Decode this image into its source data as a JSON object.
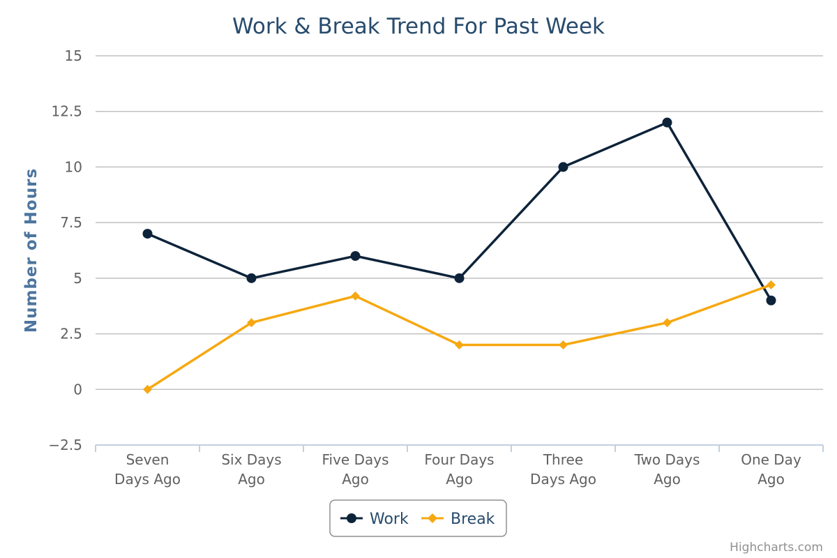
{
  "chart_data": {
    "type": "line",
    "title": "Work & Break Trend For Past Week",
    "ylabel": "Number of Hours",
    "xlabel": "",
    "categories": [
      [
        "Seven",
        "Days Ago"
      ],
      [
        "Six Days",
        "Ago"
      ],
      [
        "Five Days",
        "Ago"
      ],
      [
        "Four Days",
        "Ago"
      ],
      [
        "Three",
        "Days Ago"
      ],
      [
        "Two Days",
        "Ago"
      ],
      [
        "One Day",
        "Ago"
      ]
    ],
    "ylim": [
      -2.5,
      15
    ],
    "yticks": [
      "−2.5",
      "0",
      "2.5",
      "5",
      "7.5",
      "10",
      "12.5",
      "15"
    ],
    "ytick_values": [
      -2.5,
      0,
      2.5,
      5,
      7.5,
      10,
      12.5,
      15
    ],
    "grid": true,
    "legend_position": "bottom-center",
    "series": [
      {
        "name": "Work",
        "values": [
          7,
          5,
          6,
          5,
          10,
          12,
          4
        ],
        "color": "#0d233a",
        "marker": "circle"
      },
      {
        "name": "Break",
        "values": [
          0,
          3,
          4.2,
          2,
          2,
          3,
          4.7
        ],
        "color": "#f6a811",
        "marker": "diamond"
      }
    ],
    "credits": "Highcharts.com"
  }
}
